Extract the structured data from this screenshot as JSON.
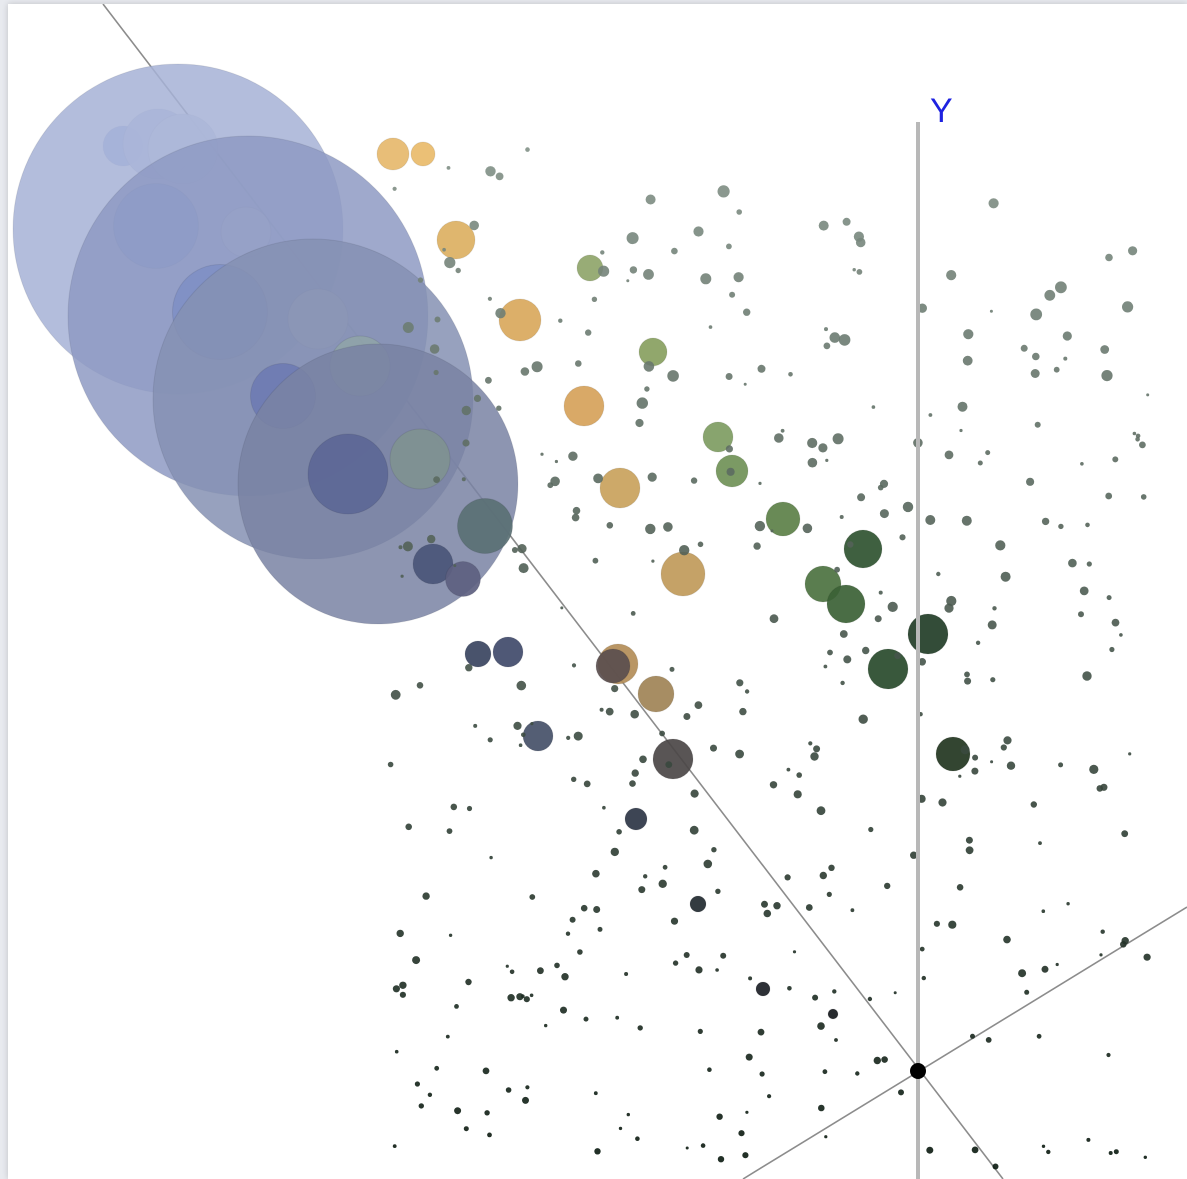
{
  "chart_data": {
    "type": "scatter",
    "title": "",
    "axes": [
      {
        "name": "y-axis",
        "label": "Y"
      },
      {
        "name": "x-axis",
        "label": ""
      },
      {
        "name": "z-axis",
        "label": ""
      }
    ],
    "grid": false,
    "legend": "none",
    "bubbles": [
      {
        "c": "#a3b5e8",
        "s": 40
      },
      {
        "c": "#c3cbe6",
        "s": 70
      },
      {
        "c": "#d5dae8",
        "s": 70
      },
      {
        "c": "#a6b1d6",
        "s": 330
      },
      {
        "c": "#8fa3da",
        "s": 85
      },
      {
        "c": "#c4c6d8",
        "s": 50
      },
      {
        "c": "#8e9ac3",
        "s": 360
      },
      {
        "c": "#7f8fc4",
        "s": 95
      },
      {
        "c": "#b2b4c8",
        "s": 60
      },
      {
        "c": "#8590b3",
        "s": 320
      },
      {
        "c": "#6e7bb2",
        "s": 65
      },
      {
        "c": "#8fa3a8",
        "s": 60
      },
      {
        "c": "#7983a3",
        "s": 280
      },
      {
        "c": "#5c6796",
        "s": 80
      },
      {
        "c": "#7f9191",
        "s": 60
      },
      {
        "c": "#5a7074",
        "s": 55
      },
      {
        "c": "#4a5578",
        "s": 40
      },
      {
        "c": "#5d6080",
        "s": 35
      },
      {
        "c": "#e6b86c",
        "s": 32
      },
      {
        "c": "#e9bb6a",
        "s": 24
      },
      {
        "c": "#dcb062",
        "s": 38
      },
      {
        "c": "#d9a85c",
        "s": 42
      },
      {
        "c": "#d6a25a",
        "s": 40
      },
      {
        "c": "#c9a25c",
        "s": 40
      },
      {
        "c": "#c09a5a",
        "s": 44
      },
      {
        "c": "#b38d58",
        "s": 40
      },
      {
        "c": "#a08356",
        "s": 36
      },
      {
        "c": "#8fa56a",
        "s": 26
      },
      {
        "c": "#88a060",
        "s": 28
      },
      {
        "c": "#7e9c62",
        "s": 30
      },
      {
        "c": "#709157",
        "s": 32
      },
      {
        "c": "#5c8048",
        "s": 34
      },
      {
        "c": "#4c7240",
        "s": 36
      },
      {
        "c": "#3b6135",
        "s": 38
      },
      {
        "c": "#2f5230",
        "s": 38
      },
      {
        "c": "#284a2b",
        "s": 40
      },
      {
        "c": "#223d27",
        "s": 40
      },
      {
        "c": "#22351f",
        "s": 34
      },
      {
        "c": "#404a6a",
        "s": 30
      },
      {
        "c": "#455068",
        "s": 30
      },
      {
        "c": "#3a4460",
        "s": 26
      },
      {
        "c": "#5a4e4e",
        "s": 34
      },
      {
        "c": "#4b4646",
        "s": 40
      },
      {
        "c": "#2c3545",
        "s": 22
      },
      {
        "c": "#222a30",
        "s": 16
      },
      {
        "c": "#1c2026",
        "s": 14
      },
      {
        "c": "#15181c",
        "s": 10
      }
    ]
  }
}
